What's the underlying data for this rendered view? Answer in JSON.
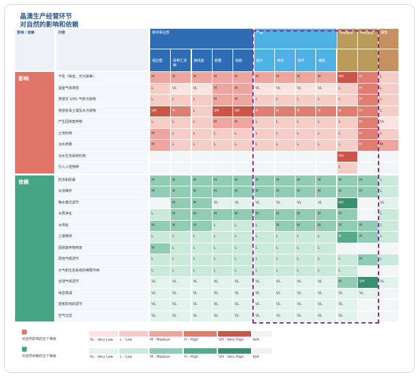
{
  "title": [
    "晶澳生产经营环节",
    "对自然的影响和依赖"
  ],
  "header": {
    "col_impact_dep": "影响 / 依赖",
    "col_content": "内容",
    "groups": [
      {
        "label": "新材事业部",
        "span": 5
      },
      {
        "label": "产品",
        "span": 4
      },
      {
        "label": "电站建设",
        "span": 1
      },
      {
        "label": "电站运营",
        "span": 1
      },
      {
        "label": "销售",
        "span": 1
      }
    ],
    "subcols": [
      "铝边框",
      "焊带汇流带",
      "接线盒",
      "胶膜",
      "硅胶",
      "硅片",
      "电池",
      "组件",
      "辅助",
      "",
      "",
      ""
    ]
  },
  "sections": [
    {
      "label": "影响",
      "rows": [
        {
          "label": "干扰（噪音、光污染等）",
          "values": [
            "M",
            "M",
            "M",
            "M",
            "M",
            "M",
            "M",
            "M",
            "M",
            "VH",
            "H",
            "L"
          ]
        },
        {
          "label": "温室气体排放",
          "values": [
            "L",
            "VL",
            "VL",
            "M",
            "M",
            "VL",
            "VL",
            "VL",
            "VL",
            "L",
            "H",
            "L"
          ]
        },
        {
          "label": "排放非 GHG 气体污染物",
          "values": [
            "L",
            "L",
            "L",
            "M",
            "M",
            "L",
            "L",
            "L",
            "L",
            "L",
            "H",
            "L"
          ]
        },
        {
          "label": "排放有毒土壤及水污染物",
          "values": [
            "VH",
            "H",
            "L",
            "VH",
            "VH",
            "H",
            "H",
            "H",
            "H",
            "H",
            "H",
            "L"
          ]
        },
        {
          "label": "产生固体废弃物",
          "values": [
            "L",
            "L",
            "L",
            "M",
            "M",
            "L",
            "L",
            "L",
            "L",
            "L",
            "H",
            "VL"
          ]
        },
        {
          "label": "土地利用",
          "values": [
            "M",
            "L",
            "L",
            "L",
            "L",
            "L",
            "L",
            "L",
            "L",
            "L",
            "H",
            "L"
          ]
        },
        {
          "label": "淡水用量",
          "values": [
            "M",
            "L",
            "L",
            "L",
            "L",
            "L",
            "L",
            "L",
            "L",
            "L",
            "H",
            "M"
          ]
        },
        {
          "label": "淡水生态系统利用",
          "values": [
            "",
            "",
            "",
            "",
            "",
            "",
            "",
            "",
            "",
            "VH",
            "",
            ""
          ]
        },
        {
          "label": "引入入侵物种",
          "values": [
            "",
            "",
            "",
            "",
            "",
            "",
            "",
            "",
            "",
            "L",
            "",
            ""
          ]
        }
      ]
    },
    {
      "label": "依赖",
      "rows": [
        {
          "label": "防洪和防暴",
          "values": [
            "M",
            "M",
            "M",
            "M",
            "M",
            "M",
            "M",
            "M",
            "M",
            "M",
            "M",
            "L"
          ]
        },
        {
          "label": "水流维护",
          "values": [
            "M",
            "M",
            "M",
            "M",
            "M",
            "M",
            "M",
            "M",
            "M",
            "M",
            "M",
            "L"
          ]
        },
        {
          "label": "降水模式调节",
          "values": [
            "",
            "M",
            "M",
            "VL",
            "VL",
            "VL",
            "VL",
            "VL",
            "VL",
            "VH",
            "",
            "VL"
          ]
        },
        {
          "label": "水质净化",
          "values": [
            "L",
            "M",
            "M",
            "M",
            "M",
            "M",
            "M",
            "M",
            "M",
            "M",
            "",
            "L"
          ]
        },
        {
          "label": "水供给",
          "values": [
            "M",
            "M",
            "M",
            "L",
            "L",
            "L",
            "M",
            "M",
            "M",
            "M",
            "M",
            "L"
          ]
        },
        {
          "label": "土壤维持",
          "values": [
            "L",
            "L",
            "L",
            "L",
            "L",
            "L",
            "L",
            "L",
            "L",
            "H",
            "M",
            "L"
          ]
        },
        {
          "label": "固体废弃物修复",
          "values": [
            "M",
            "L",
            "L",
            "L",
            "L",
            "L",
            "L",
            "L",
            "L",
            "",
            "",
            ""
          ]
        },
        {
          "label": "局地气候调节",
          "values": [
            "L",
            "L",
            "L",
            "L",
            "L",
            "L",
            "L",
            "L",
            "L",
            "L",
            "M",
            "L"
          ]
        },
        {
          "label": "大气和生态系统的稀释作用",
          "values": [
            "L",
            "L",
            "L",
            "L",
            "L",
            "L",
            "L",
            "L",
            "L",
            "L",
            "",
            ""
          ]
        },
        {
          "label": "全球气候调节",
          "values": [
            "VL",
            "VL",
            "VL",
            "VL",
            "VL",
            "VL",
            "VL",
            "VL",
            "VL",
            "M",
            "VH",
            "VL"
          ]
        },
        {
          "label": "噪音衰减",
          "values": [
            "VL",
            "VL",
            "VL",
            "VL",
            "VL",
            "VL",
            "VL",
            "VL",
            "VL",
            "VL",
            "VL",
            ""
          ]
        },
        {
          "label": "感官影响的调节",
          "values": [
            "VL",
            "VL",
            "VL",
            "VL",
            "VL",
            "VL",
            "VL",
            "VL",
            "VL",
            "VL",
            "",
            ""
          ]
        },
        {
          "label": "空气过滤",
          "values": [
            "VL",
            "VL",
            "VL",
            "VL",
            "VL",
            "VL",
            "VL",
            "VL",
            "VL",
            "VL",
            "",
            ""
          ]
        }
      ]
    }
  ],
  "legend": {
    "impact": {
      "label": "对自然影响的五个等级"
    },
    "dependency": {
      "label": "对自然依赖的五个等级"
    },
    "levels": [
      "VL - Very Low",
      "L - Low",
      "M - Medium",
      "H - High",
      "VH - Very High",
      "N/A"
    ]
  },
  "colors": {
    "header_blue": "#2e6db4",
    "header_light_blue": "#4fb0e6",
    "header_gold": "#b99a5a",
    "header_sales": "#c79060",
    "impact_section": "#e07466",
    "dependency_section": "#46a585",
    "highlight_border": "#8a2f8f",
    "impact_scale": {
      "VL": "#fbe3df",
      "L": "#f6cdc6",
      "M": "#eea59b",
      "H": "#e07d71",
      "VH": "#cc5448"
    },
    "dependency_scale": {
      "VL": "#e2f2ec",
      "L": "#cbe8dd",
      "M": "#8fcbb5",
      "H": "#54ab8b",
      "VH": "#3a8f70"
    }
  }
}
